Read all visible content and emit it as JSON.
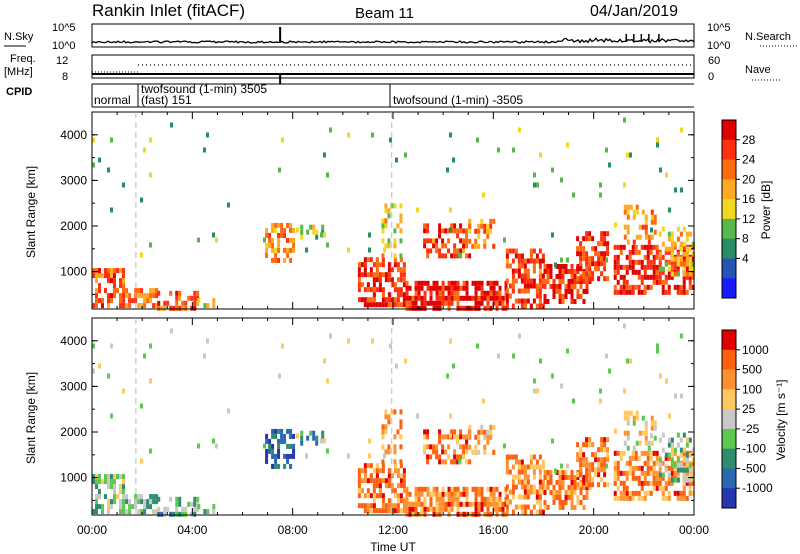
{
  "header": {
    "station": "Rankin Inlet (fitACF)",
    "beam": "Beam 11",
    "date": "04/Jan/2019"
  },
  "strips": {
    "nsky_label": "N.Sky",
    "nsky_ticks": [
      "10^5",
      "10^0"
    ],
    "nsearch_label": "N.Search",
    "nsearch_ticks": [
      "10^5",
      "10^0"
    ],
    "freq_label_1": "Freq.",
    "freq_label_2": "[MHz]",
    "freq_ticks": [
      "12",
      "8"
    ],
    "nave_label": "Nave",
    "nave_ticks": [
      "60",
      "0"
    ],
    "cpid_label": "CPID",
    "cpid_segments": [
      {
        "label": "normal",
        "start_hr": 0.0
      },
      {
        "label": "twofsound (1-min) 3505",
        "label2": "(fast) 151",
        "start_hr": 1.75
      },
      {
        "label": "twofsound (1-min) -3505",
        "start_hr": 11.95
      }
    ]
  },
  "chart_data": [
    {
      "type": "heatmap",
      "name": "power",
      "ylabel": "Slant Range [km]",
      "yticks": [
        1000,
        2000,
        3000,
        4000
      ],
      "ylim": [
        180,
        4500
      ],
      "xlim_hr": [
        0,
        24
      ],
      "colorbar_label": "Power [dB]",
      "colorbar_ticks": [
        "28",
        "24",
        "20",
        "16",
        "12",
        "8",
        "4"
      ],
      "colors": [
        "#1a1aff",
        "#2455b4",
        "#2a8c64",
        "#55b848",
        "#f0d820",
        "#ffaa22",
        "#ff6a10",
        "#ff3010",
        "#e00000"
      ]
    },
    {
      "type": "heatmap",
      "name": "velocity",
      "ylabel": "Slant Range [km]",
      "yticks": [
        1000,
        2000,
        3000,
        4000
      ],
      "ylim": [
        180,
        4500
      ],
      "xlim_hr": [
        0,
        24
      ],
      "xlabel": "Time UT",
      "xticks": [
        "00:00",
        "04:00",
        "08:00",
        "12:00",
        "16:00",
        "20:00",
        "00:00"
      ],
      "colorbar_label": "Velocity [m s⁻¹]",
      "colorbar_ticks": [
        "1000",
        "500",
        "100",
        "25",
        "-25",
        "-100",
        "-500",
        "-1000"
      ],
      "colors": [
        "#2436b0",
        "#2a68b0",
        "#2e8c70",
        "#5cc850",
        "#c8c8c8",
        "#ffc860",
        "#ff9030",
        "#ff6010",
        "#e00000"
      ]
    }
  ]
}
